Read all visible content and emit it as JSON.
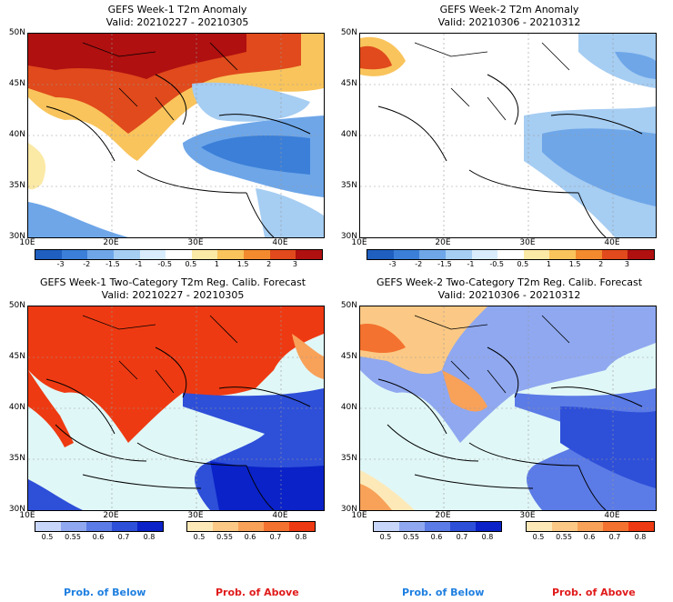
{
  "panels": [
    {
      "title": "GEFS Week-1 T2m Anomaly",
      "valid": "Valid: 20210227 - 20210305"
    },
    {
      "title": "GEFS Week-2 T2m Anomaly",
      "valid": "Valid: 20210306 - 20210312"
    },
    {
      "title": "GEFS Week-1 Two-Category T2m Reg. Calib. Forecast",
      "valid": "Valid: 20210227 - 20210305"
    },
    {
      "title": "GEFS Week-2 Two-Category T2m Reg. Calib. Forecast",
      "valid": "Valid: 20210306 - 20210312"
    }
  ],
  "lat_ticks": [
    "50N",
    "45N",
    "40N",
    "35N",
    "30N"
  ],
  "lon_ticks": [
    "10E",
    "20E",
    "30E",
    "40E"
  ],
  "anomaly_colorbar": {
    "labels": [
      "-3",
      "-2",
      "-1.5",
      "-1",
      "-0.5",
      "0.5",
      "1",
      "1.5",
      "2",
      "3"
    ],
    "colors": [
      "#1f5fc0",
      "#3b7fd8",
      "#6ea6e8",
      "#a6cdf2",
      "#d8ecfb",
      "#ffffff",
      "#fbe9a6",
      "#f9c45c",
      "#f38a2e",
      "#e04a1c",
      "#b01010"
    ]
  },
  "prob_below_colorbar": {
    "labels": [
      "0.5",
      "0.55",
      "0.6",
      "0.7",
      "0.8"
    ],
    "colors": [
      "#c8d6fa",
      "#8fa8f0",
      "#5b7be6",
      "#2e4fd8",
      "#0a22c8"
    ]
  },
  "prob_above_colorbar": {
    "labels": [
      "0.5",
      "0.55",
      "0.6",
      "0.7",
      "0.8"
    ],
    "colors": [
      "#fde9b8",
      "#fbc985",
      "#f8a159",
      "#f4722f",
      "#ee3a12"
    ]
  },
  "footer": {
    "below": "Prob. of Below",
    "above": "Prob. of Above"
  },
  "colors": {
    "sea": "#e0f7f7",
    "neutral": "#ffffff",
    "coast": "#000000"
  }
}
